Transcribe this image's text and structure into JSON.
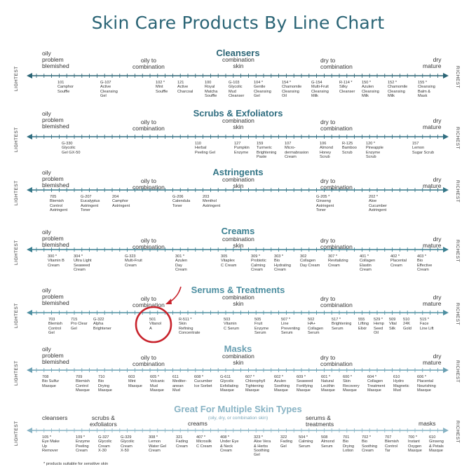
{
  "title": "Skin Care Products By Line Chart",
  "endpoints": {
    "left": "LIGHTEST",
    "right": "RICHEST"
  },
  "footnote": "* products suitable for sensitive skin",
  "colors": [
    "#2a6475",
    "#2f6d80",
    "#347687",
    "#3a7f90",
    "#4c8ea0",
    "#6a9fb2",
    "#88b3c4"
  ],
  "sections": [
    {
      "name": "Cleansers",
      "skin": [
        "oily\nproblem\nblemished",
        "oily to\ncombination",
        "combination\nskin",
        "dry to\ncombination",
        "dry\nmature"
      ],
      "products": [
        "101\nCamphor\nSouffle",
        "G-107\nActive\nCleansing\nGel",
        "102 *\nMint\nSouffle",
        "121\nActive\nCharcoal",
        "100\nRoyal\nMatcha\nSouffle",
        "G-103\nGlycolic\nMud\nCleanser",
        "104 *\nGentle\nCleansing\nGel",
        "154 *\nChamomile\nCleansing\nOil",
        "G-154\nMulti-Fruit\nCleansing\nMilk",
        "R-114 *\nSilky\nCleanser",
        "150 *\nAzulen\nCleansing\nMilk",
        "152 *\nChamomile\nCleansing\nMilk",
        "155 *\nCleansing\nBalm &\nMask"
      ]
    },
    {
      "name": "Scrubs & Exfoliators",
      "skin": [
        "oily\nproblem\nblemished",
        "oily to\ncombination",
        "combination\nskin",
        "dry to\ncombination",
        "dry\nmature"
      ],
      "products": [
        "G-330\nGlycolic\nGel GX-50",
        "110\nHerbal\nPeeling Gel",
        "127\nPumpkin\nEnzyme",
        "159\nTurmeric\nBrightening\nPaste",
        "107\nMicro-\ndermabrasion\nCream",
        "106\nAlmond\nHoney\nScrub",
        "R-125\nBamboo\nScrub",
        "120 *\nPineapple\nEnzyme\nScrub",
        "157\nLemon\nSugar Scrub"
      ]
    },
    {
      "name": "Astringents",
      "skin": [
        "oily\nproblem\nblemished",
        "oily to\ncombination",
        "combination\nskin",
        "dry to\ncombination",
        "dry\nmature"
      ],
      "products": [
        "705\nBlemish\nControl\nAstringent",
        "G-207\nEucalyptus\nAstringent\nToner",
        "204\nCamphor\nAstringent",
        "G-206\nCalendula\nToner",
        "203\nMenthol\nAstringent",
        "G-205 *\nGinseng\nAstringent\nToner",
        "202 *\nAloe\nCucumber\nAstringent"
      ]
    },
    {
      "name": "Creams",
      "skin": [
        "oily\nproblem\nblemished",
        "oily to\ncombination",
        "combination\nskin",
        "dry to\ncombination",
        "dry\nmature"
      ],
      "products": [
        "300 *\nVitamin B\nCream",
        "304 *\nUltra Light\nSeaweed\nCream",
        "G-323\nMulti-Fruit\nCream",
        "301 *\nAzulen\nDay\nCream",
        "305\nVitaplex\nC Cream",
        "309 *\nProbiotic\nCalming\nCream",
        "303 *\nBio\nHydrating\nCream",
        "302\nCollagen\nDay Cream",
        "307 *\nRevitalizing\nCream",
        "401 *\nCollagen\nElastin\nCream",
        "402 *\nPlacental\nCream",
        "403 *\nBio\nEffective\nCream"
      ]
    },
    {
      "name": "Serums & Treatments",
      "skin": [
        "oily\nproblem\nblemished",
        "oily to\ncombination",
        "combination\nskin",
        "dry to\ncombination",
        "dry\nmature"
      ],
      "products": [
        "703\nBlemish\nControl\nGel",
        "715\nPro Clear\nGel",
        "G-322\nAlpha\nBrightener",
        "501\nVitanol\nA",
        "R-511 *\nSkin\nRefining\nConcentrate",
        "503\nVitamin\nC Serum",
        "505\nFruit\nEnzyme\nSerum",
        "507 *\nLine\nPreventing\nSerum",
        "502\nHA+\nCollagen\nSerum",
        "517 *\nBrightening\nSerum",
        "555\nLifting\nElixir",
        "529 *\nHemp\nSeed\nOil",
        "509\nVital\nSilk",
        "510\n24K\nGold",
        "515 *\nFace\nLine Lift"
      ]
    },
    {
      "name": "Masks",
      "skin": [
        "oily\nproblem\nblemished",
        "oily to\ncombination",
        "combination\nskin",
        "dry to\ncombination",
        "dry\nmature"
      ],
      "products": [
        "708\nBio Sulfur\nMasque",
        "709\nBlemish\nControl\nMasque",
        "710\nBio\nDrying\nMasque",
        "603\nMint\nMasque",
        "605 *\nVolcanic\nMud\nMasque",
        "611\nMediter-\nanean\nMud",
        "608 *\nCucumber\nIce Sorbet",
        "G-611\nGlycolic\nExfoliating\nMasque",
        "607 *\nChlorophyll\nTightening\nMasque",
        "602 *\nAzulen\nSoothing\nMasque",
        "609 *\nSeaweed\nFortifying\nMasque",
        "601 *\nNatural\nLecithin\nMasque",
        "600 *\nSkin\nRecovery\nMasque",
        "604 *\nCollagen\nTreatment\nMasque",
        "610\nHydro\nMagnetic\nMud",
        "606 *\nPlacental\nNourishing\nMasque"
      ]
    },
    {
      "name": "Great For Multiple Skin Types",
      "subtitle": "(oily, dry, or combination skin)",
      "skin": [
        "cleansers",
        "scrubs &\nexfoliators",
        "creams",
        "serums &\ntreatments",
        "masks"
      ],
      "products": [
        "105 *\nEye Make\nUp\nRemover",
        "109 *\nEnzyme\nPeeling\nCream",
        "G-327\nGlycolic\nCream\nX-30",
        "G-329\nGlycolic\nCream\nX-50",
        "308 *\nLemon\nWater Gel\nCream",
        "321\nFading\nCream",
        "407 *\nMicrosilk\nC Cream",
        "408 *\nUnder Eye\n& Neck\nCream",
        "323 *\nAloe Vera\n& Herbs\nSoothing\nGel",
        "322\nFading\nGel",
        "504 *\nCalming\nSerum",
        "508\nAlmond\nSerum",
        "701\nBio\nDrying\nLotion",
        "702 *\nBio\nSoothing\nCream",
        "707\nBlemish\nControl\nTar",
        "700 *\nInstant\nOxygen\nMasque",
        "610\nGinseng\n& Petals\nMasque"
      ]
    }
  ],
  "highlight": {
    "section": "Serums & Treatments",
    "product": "501"
  }
}
